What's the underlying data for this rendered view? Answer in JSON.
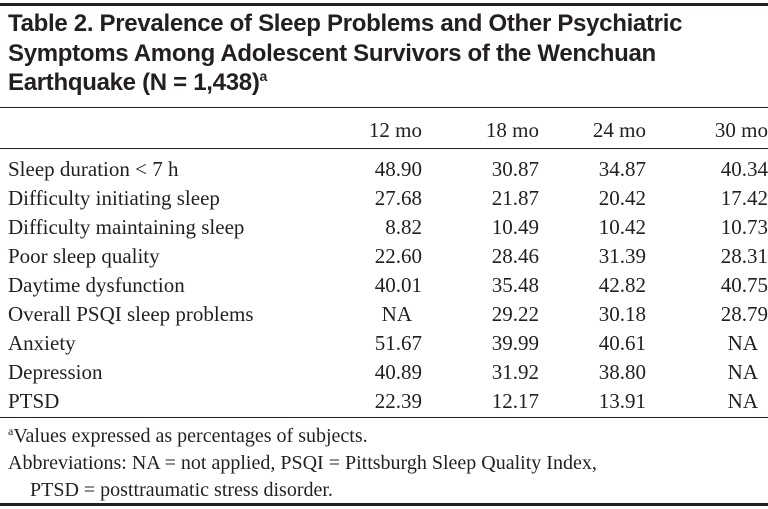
{
  "title": {
    "line1": "Table 2. Prevalence of Sleep Problems and Other Psychiatric",
    "line2": "Symptoms Among Adolescent Survivors of the Wenchuan",
    "line3": "Earthquake (N = 1,438)",
    "superscript": "a"
  },
  "table": {
    "headers": [
      "12 mo",
      "18 mo",
      "24 mo",
      "30 mo"
    ],
    "rows": [
      {
        "label": "Sleep duration < 7 h",
        "values": [
          "48.90",
          "30.87",
          "34.87",
          "40.34"
        ]
      },
      {
        "label": "Difficulty initiating sleep",
        "values": [
          "27.68",
          "21.87",
          "20.42",
          "17.42"
        ]
      },
      {
        "label": "Difficulty maintaining sleep",
        "values": [
          "8.82",
          "10.49",
          "10.42",
          "10.73"
        ]
      },
      {
        "label": "Poor sleep quality",
        "values": [
          "22.60",
          "28.46",
          "31.39",
          "28.31"
        ]
      },
      {
        "label": "Daytime dysfunction",
        "values": [
          "40.01",
          "35.48",
          "42.82",
          "40.75"
        ]
      },
      {
        "label": "Overall PSQI sleep problems",
        "values": [
          "NA",
          "29.22",
          "30.18",
          "28.79"
        ]
      },
      {
        "label": "Anxiety",
        "values": [
          "51.67",
          "39.99",
          "40.61",
          "NA"
        ]
      },
      {
        "label": "Depression",
        "values": [
          "40.89",
          "31.92",
          "38.80",
          "NA"
        ]
      },
      {
        "label": "PTSD",
        "values": [
          "22.39",
          "12.17",
          "13.91",
          "NA"
        ]
      }
    ]
  },
  "footnotes": {
    "a_marker": "a",
    "a_text": "Values expressed as percentages of subjects.",
    "abbrev_line1": "Abbreviations: NA = not applied, PSQI = Pittsburgh Sleep Quality Index,",
    "abbrev_line2": "PTSD = posttraumatic stress disorder."
  }
}
